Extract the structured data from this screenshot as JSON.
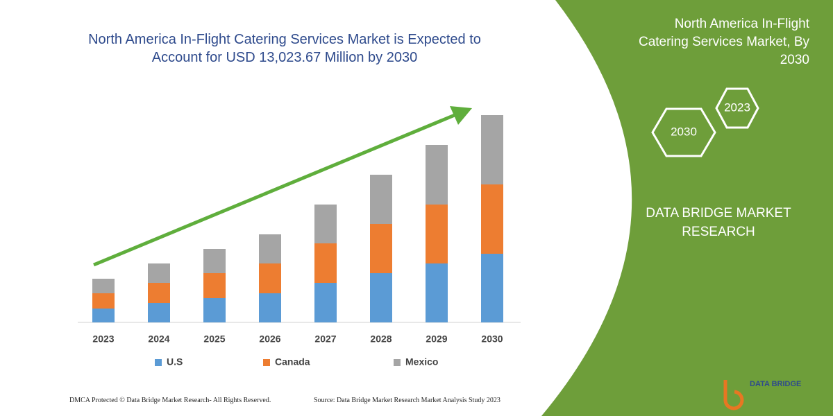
{
  "chart_data": {
    "type": "bar",
    "stacked": true,
    "title": "North America In-Flight Catering Services Market is Expected to Account for USD 13,023.67 Million by 2030",
    "categories": [
      "2023",
      "2024",
      "2025",
      "2026",
      "2027",
      "2028",
      "2029",
      "2030"
    ],
    "series": [
      {
        "name": "U.S",
        "color": "#5b9bd5",
        "values": [
          20,
          28,
          35,
          42,
          57,
          71,
          85,
          99
        ]
      },
      {
        "name": "Canada",
        "color": "#ed7d31",
        "values": [
          22,
          29,
          36,
          43,
          57,
          71,
          85,
          100
        ]
      },
      {
        "name": "Mexico",
        "color": "#a5a5a5",
        "values": [
          21,
          28,
          35,
          42,
          56,
          71,
          86,
          100
        ]
      }
    ]
  },
  "side_panel": {
    "title": "North America In-Flight Catering Services Market, By 2030",
    "hexagons": [
      "2023",
      "2030"
    ],
    "brand": "DATA BRIDGE MARKET RESEARCH"
  },
  "footer": {
    "left": "DMCA Protected © Data Bridge Market Research-  All Rights Reserved.",
    "right": "Source: Data Bridge Market Research  Market Analysis Study 2023"
  },
  "logo": "DATA BRIDGE"
}
